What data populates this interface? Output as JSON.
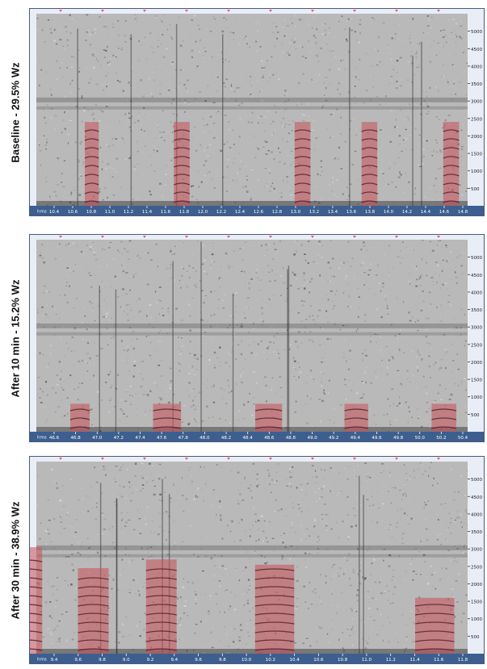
{
  "colors": {
    "background": "#b9b9b9",
    "dark_noise": "#2b2b2b",
    "highlight": "#c8505a",
    "axis_bar": "#3d5f8f",
    "axis_text": "#ffffff",
    "tick_marker": "#e06070"
  },
  "chart_data": [
    {
      "type": "heatmap",
      "label": "Baseline - 29.5% Wz",
      "x_unit": "hms",
      "xticks": [
        "10.4",
        "10.6",
        "10.8",
        "11.0",
        "11.2",
        "11.4",
        "11.6",
        "11.8",
        "12.0",
        "12.2",
        "12.4",
        "12.6",
        "12.8",
        "13.0",
        "13.2",
        "13.4",
        "13.6",
        "13.8",
        "14.0",
        "14.2",
        "14.4",
        "14.6",
        "14.8"
      ],
      "ylim": [
        0,
        5500
      ],
      "yticks": [
        "500",
        "1000",
        "1500",
        "2000",
        "2500",
        "3000",
        "3500",
        "4000",
        "4500",
        "5000"
      ],
      "highlighted_segments": [
        {
          "x_start": 10.73,
          "x_end": 10.88,
          "y_max": 2400
        },
        {
          "x_start": 11.69,
          "x_end": 11.86,
          "y_max": 2400
        },
        {
          "x_start": 12.99,
          "x_end": 13.16,
          "y_max": 2400
        },
        {
          "x_start": 13.71,
          "x_end": 13.88,
          "y_max": 2400
        },
        {
          "x_start": 14.59,
          "x_end": 14.76,
          "y_max": 2400
        }
      ]
    },
    {
      "type": "heatmap",
      "label": "After 10 min - 15.2% Wz",
      "x_unit": "hms",
      "xticks": [
        "46.6",
        "46.8",
        "47.0",
        "47.2",
        "47.4",
        "47.6",
        "47.8",
        "48.0",
        "48.2",
        "48.4",
        "48.6",
        "48.8",
        "49.0",
        "49.2",
        "49.4",
        "49.6",
        "49.8",
        "50.0",
        "50.2",
        "50.4"
      ],
      "ylim": [
        0,
        5500
      ],
      "yticks": [
        "500",
        "1000",
        "1500",
        "2000",
        "2500",
        "3000",
        "3500",
        "4000",
        "4500",
        "5000"
      ],
      "highlighted_segments": [
        {
          "x_start": 46.75,
          "x_end": 46.93,
          "y_max": 800
        },
        {
          "x_start": 47.52,
          "x_end": 47.78,
          "y_max": 800
        },
        {
          "x_start": 48.47,
          "x_end": 48.72,
          "y_max": 800
        },
        {
          "x_start": 49.3,
          "x_end": 49.52,
          "y_max": 800
        },
        {
          "x_start": 50.11,
          "x_end": 50.34,
          "y_max": 800
        }
      ]
    },
    {
      "type": "heatmap",
      "label": "After 30 min - 38.9% Wz",
      "x_unit": "hms",
      "xticks": [
        "9.4",
        "9.6",
        "9.8",
        "9.0",
        "9.2",
        "9.4",
        "9.6",
        "9.8",
        "10.0",
        "10.2",
        "10.4",
        "10.6",
        "10.8",
        "11.0",
        "11.2",
        "11.4",
        "11.6",
        "11.8"
      ],
      "ylim": [
        0,
        5500
      ],
      "yticks": [
        "500",
        "1000",
        "1500",
        "2000",
        "2500",
        "3000",
        "3500",
        "4000",
        "4500",
        "5000"
      ],
      "highlighted_segments": [
        {
          "x_start": 9.54,
          "x_end": 9.72,
          "y_max": 2450
        },
        {
          "x_start": 9.15,
          "x_end": 9.33,
          "y_max": 3050
        },
        {
          "x_start": 9.94,
          "x_end": 10.12,
          "y_max": 2700
        },
        {
          "x_start": 10.58,
          "x_end": 10.81,
          "y_max": 2550
        },
        {
          "x_start": 11.52,
          "x_end": 11.75,
          "y_max": 1600
        }
      ]
    }
  ]
}
